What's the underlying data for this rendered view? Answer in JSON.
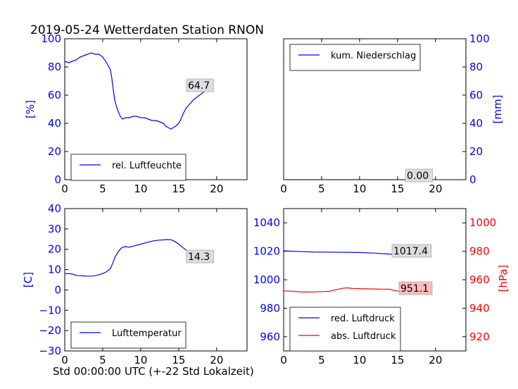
{
  "figure": {
    "title": "2019-05-24 Wetterdaten Station RNON",
    "xlabel": "Std 00:00:00 UTC (+-22 Std Lokalzeit)"
  },
  "colors": {
    "blue": "#0000ff",
    "red": "#ff0000",
    "ann_bg": "#dddddd",
    "ann_bg_red": "#ffbbbb"
  },
  "chart_data": [
    {
      "id": "humidity",
      "type": "line",
      "ylabel": "[%]",
      "xlim": [
        0,
        24
      ],
      "ylim": [
        0,
        100
      ],
      "xticks": [
        0,
        5,
        10,
        15,
        20
      ],
      "yticks": [
        0,
        20,
        40,
        60,
        80,
        100
      ],
      "legend": {
        "position": "lower-left",
        "entries": [
          "rel. Luftfeuchte"
        ]
      },
      "annotation": "64.7",
      "series": [
        {
          "name": "rel. Luftfeuchte",
          "color": "#0000ff",
          "x": [
            0,
            0.5,
            1,
            1.5,
            2,
            2.5,
            3,
            3.5,
            4,
            4.5,
            5,
            5.5,
            6,
            6.2,
            6.4,
            6.6,
            6.8,
            7,
            7.3,
            7.6,
            8,
            8.5,
            9,
            9.5,
            10,
            10.5,
            11,
            11.5,
            12,
            12.5,
            13,
            13.3,
            13.6,
            14,
            14.3,
            14.6,
            15,
            15.3,
            15.6,
            16,
            16.5,
            17,
            17.5,
            18,
            18.5,
            19,
            19.3
          ],
          "y": [
            84,
            83,
            84,
            85,
            87,
            88,
            89,
            90,
            89,
            89,
            87,
            83,
            78,
            72,
            63,
            56,
            52,
            49,
            45,
            43,
            44,
            44,
            45,
            45,
            44,
            44,
            43,
            42,
            42,
            41,
            40,
            38,
            37,
            36,
            37,
            38,
            40,
            43,
            47,
            51,
            54,
            57,
            59,
            61,
            63,
            64,
            64.7
          ]
        }
      ]
    },
    {
      "id": "precipitation",
      "type": "line",
      "ylabel": "[mm]",
      "xlim": [
        0,
        24
      ],
      "ylim": [
        0,
        100
      ],
      "xticks": [
        0,
        5,
        10,
        15,
        20
      ],
      "yticks": [
        0,
        20,
        40,
        60,
        80,
        100
      ],
      "legend": {
        "position": "upper-left",
        "entries": [
          "kum. Niederschlag"
        ]
      },
      "annotation": "0.00",
      "series": [
        {
          "name": "kum. Niederschlag",
          "color": "#0000ff",
          "x": [
            0,
            19.3
          ],
          "y": [
            0,
            0
          ]
        }
      ]
    },
    {
      "id": "temperature",
      "type": "line",
      "ylabel": "[C]",
      "xlim": [
        0,
        24
      ],
      "ylim": [
        -30,
        40
      ],
      "xticks": [
        0,
        5,
        10,
        15,
        20
      ],
      "yticks": [
        -30,
        -20,
        -10,
        0,
        10,
        20,
        30,
        40
      ],
      "legend": {
        "position": "lower-left",
        "entries": [
          "Lufttemperatur"
        ]
      },
      "annotation": "14.3",
      "series": [
        {
          "name": "Lufttemperatur",
          "color": "#0000ff",
          "x": [
            0,
            0.5,
            1,
            1.5,
            2,
            2.5,
            3,
            3.5,
            4,
            4.5,
            5,
            5.5,
            6,
            6.3,
            6.6,
            7,
            7.3,
            7.6,
            8,
            8.5,
            9,
            9.5,
            10,
            10.5,
            11,
            11.5,
            12,
            12.5,
            13,
            13.5,
            14,
            14.5,
            15,
            15.5,
            16,
            16.5,
            17,
            17.5,
            18,
            18.5,
            19,
            19.3
          ],
          "y": [
            8,
            8,
            7.8,
            7.2,
            7,
            6.9,
            6.8,
            6.8,
            7,
            7.5,
            8,
            9,
            10.5,
            13,
            16,
            18.5,
            20,
            21,
            21.3,
            21,
            21.5,
            22,
            22.5,
            23,
            23.5,
            24,
            24.3,
            24.5,
            24.6,
            24.8,
            24.7,
            23.8,
            22.5,
            21,
            19.5,
            18,
            17,
            16,
            15.2,
            14.8,
            14.5,
            14.3
          ]
        }
      ]
    },
    {
      "id": "pressure",
      "type": "line",
      "ylabel": "[hPa]",
      "xlim": [
        0,
        24
      ],
      "ylim_left": [
        950,
        1050
      ],
      "ylim_right": [
        910,
        1010
      ],
      "xticks": [
        0,
        5,
        10,
        15,
        20
      ],
      "yticks_left": [
        960,
        980,
        1000,
        1020,
        1040
      ],
      "yticks_right": [
        920,
        940,
        960,
        980,
        1000
      ],
      "legend": {
        "position": "lower-left",
        "entries": [
          "red. Luftdruck",
          "abs. Luftdruck"
        ]
      },
      "annotations": [
        "1017.4",
        "951.1"
      ],
      "series": [
        {
          "name": "red. Luftdruck",
          "color": "#0000ff",
          "axis": "left",
          "x": [
            0,
            2,
            4,
            6,
            8,
            10,
            12,
            14,
            16,
            18,
            19.3
          ],
          "y": [
            1020.3,
            1019.9,
            1019.5,
            1019.4,
            1019.3,
            1019.1,
            1018.7,
            1018.0,
            1017.6,
            1017.5,
            1017.4
          ]
        },
        {
          "name": "abs. Luftdruck",
          "color": "#ff0000",
          "axis": "right",
          "x": [
            0,
            1,
            2,
            3,
            4,
            5,
            6,
            6.5,
            7,
            7.5,
            8,
            8.5,
            9,
            10,
            11,
            12,
            13,
            14,
            14.5,
            15,
            16,
            17,
            18,
            19,
            19.3
          ],
          "y": [
            952.2,
            952.0,
            951.6,
            951.4,
            951.5,
            951.7,
            951.9,
            952.5,
            953.1,
            953.7,
            954.2,
            954.3,
            953.9,
            953.7,
            953.6,
            953.5,
            953.4,
            953.3,
            952.6,
            952.0,
            951.4,
            951.2,
            951.0,
            951.1,
            951.1
          ]
        }
      ]
    }
  ]
}
